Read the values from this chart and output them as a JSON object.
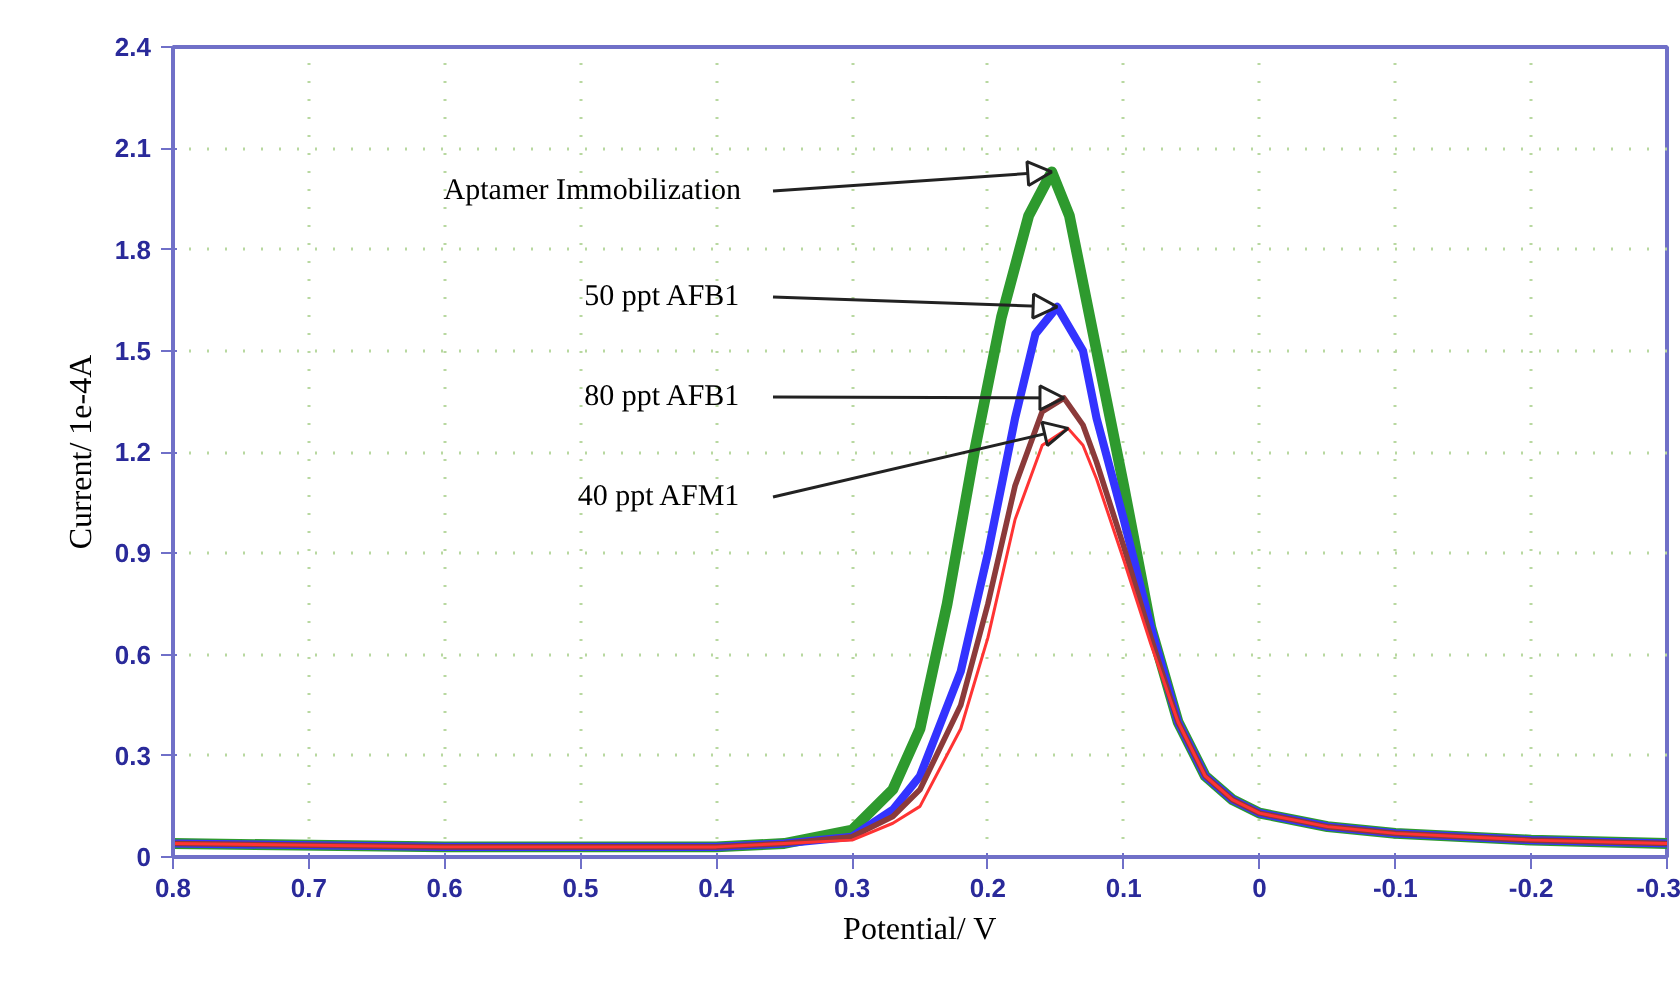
{
  "chart_data": {
    "type": "line",
    "xlabel": "Potential/ V",
    "ylabel": "Current/ 1e-4A",
    "xlim": [
      0.8,
      -0.3
    ],
    "ylim": [
      0,
      2.4
    ],
    "xticks": [
      0.8,
      0.7,
      0.6,
      0.5,
      0.4,
      0.3,
      0.2,
      0.1,
      0,
      -0.1,
      -0.2,
      -0.3
    ],
    "yticks": [
      0,
      0.3,
      0.6,
      0.9,
      1.2,
      1.5,
      1.8,
      2.1,
      2.4
    ],
    "grid": true,
    "line_style": "solid",
    "marker": "none",
    "series": [
      {
        "color": "#2e9a2e",
        "x": [
          0.8,
          0.6,
          0.4,
          0.35,
          0.3,
          0.27,
          0.25,
          0.23,
          0.21,
          0.19,
          0.17,
          0.153,
          0.14,
          0.12,
          0.1,
          0.08,
          0.06,
          0.04,
          0.02,
          0,
          -0.05,
          -0.1,
          -0.2,
          -0.3
        ],
        "values": [
          0.04,
          0.03,
          0.03,
          0.04,
          0.08,
          0.2,
          0.38,
          0.75,
          1.2,
          1.6,
          1.9,
          2.03,
          1.9,
          1.5,
          1.1,
          0.68,
          0.4,
          0.24,
          0.17,
          0.13,
          0.09,
          0.07,
          0.05,
          0.04
        ]
      },
      {
        "color": "#3333ff",
        "x": [
          0.8,
          0.6,
          0.4,
          0.35,
          0.3,
          0.27,
          0.25,
          0.22,
          0.2,
          0.18,
          0.165,
          0.149,
          0.13,
          0.12,
          0.1,
          0.08,
          0.06,
          0.04,
          0.02,
          0,
          -0.05,
          -0.1,
          -0.2,
          -0.3
        ],
        "values": [
          0.04,
          0.03,
          0.03,
          0.04,
          0.06,
          0.14,
          0.24,
          0.55,
          0.9,
          1.3,
          1.55,
          1.63,
          1.5,
          1.3,
          1.0,
          0.68,
          0.4,
          0.24,
          0.17,
          0.13,
          0.09,
          0.07,
          0.05,
          0.04
        ]
      },
      {
        "color": "#8b3a3a",
        "x": [
          0.8,
          0.6,
          0.4,
          0.35,
          0.3,
          0.27,
          0.25,
          0.22,
          0.2,
          0.18,
          0.16,
          0.144,
          0.13,
          0.12,
          0.1,
          0.08,
          0.06,
          0.04,
          0.02,
          0,
          -0.05,
          -0.1,
          -0.2,
          -0.3
        ],
        "values": [
          0.04,
          0.03,
          0.03,
          0.04,
          0.06,
          0.12,
          0.2,
          0.45,
          0.75,
          1.1,
          1.32,
          1.36,
          1.28,
          1.17,
          0.92,
          0.65,
          0.4,
          0.24,
          0.17,
          0.13,
          0.09,
          0.07,
          0.05,
          0.04
        ]
      },
      {
        "color": "#ff3333",
        "x": [
          0.8,
          0.6,
          0.4,
          0.35,
          0.3,
          0.27,
          0.25,
          0.22,
          0.2,
          0.18,
          0.16,
          0.141,
          0.13,
          0.12,
          0.1,
          0.08,
          0.06,
          0.04,
          0.02,
          0,
          -0.05,
          -0.1,
          -0.2,
          -0.3
        ],
        "values": [
          0.04,
          0.03,
          0.03,
          0.04,
          0.05,
          0.1,
          0.15,
          0.38,
          0.65,
          1.0,
          1.22,
          1.27,
          1.22,
          1.12,
          0.88,
          0.63,
          0.4,
          0.24,
          0.17,
          0.13,
          0.09,
          0.07,
          0.05,
          0.04
        ]
      }
    ],
    "annotations": [
      {
        "text": "Aptamer Immobilization",
        "x": 0.153,
        "y": 2.03
      },
      {
        "text": "50 ppt AFB1",
        "x": 0.149,
        "y": 1.63
      },
      {
        "text": "80 ppt AFB1",
        "x": 0.144,
        "y": 1.36
      },
      {
        "text": "40 ppt AFM1",
        "x": 0.141,
        "y": 1.27
      }
    ]
  }
}
